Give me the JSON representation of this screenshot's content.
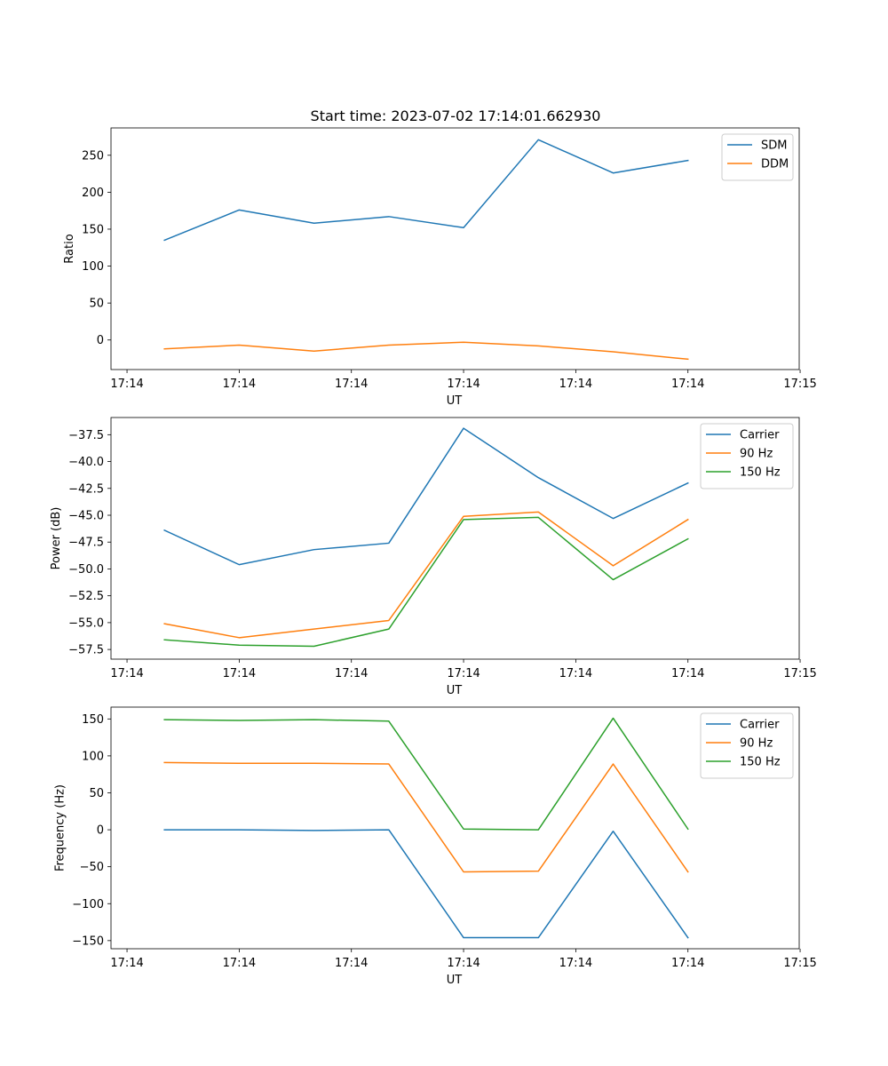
{
  "figure": {
    "title": "Start time: 2023-07-02 17:14:01.662930"
  },
  "chart_data": [
    {
      "type": "line",
      "title": "Start time: 2023-07-02 17:14:01.662930",
      "xlabel": "UT",
      "ylabel": "Ratio",
      "x": [
        1,
        2,
        3,
        4,
        5,
        6,
        7,
        8
      ],
      "xlim": [
        0.2857,
        9.4875
      ],
      "xticks": [
        0.5,
        2.0,
        3.5,
        5.0,
        6.5,
        8.0,
        9.5
      ],
      "xtick_labels": [
        "17:14",
        "17:14",
        "17:14",
        "17:14",
        "17:14",
        "17:14",
        "17:15"
      ],
      "ylim": [
        -40,
        287
      ],
      "yticks": [
        0,
        50,
        100,
        150,
        200,
        250
      ],
      "ytick_labels": [
        "0",
        "50",
        "100",
        "150",
        "200",
        "250"
      ],
      "legend_position": "top-right",
      "series": [
        {
          "name": "SDM",
          "color": "#1f77b4",
          "values": [
            135,
            176,
            158,
            167,
            152,
            271,
            226,
            243
          ]
        },
        {
          "name": "DDM",
          "color": "#ff7f0e",
          "values": [
            -12,
            -7,
            -15,
            -7,
            -3,
            -8,
            -16,
            -26
          ]
        }
      ]
    },
    {
      "type": "line",
      "title": "",
      "xlabel": "UT",
      "ylabel": "Power (dB)",
      "x": [
        1,
        2,
        3,
        4,
        5,
        6,
        7,
        8
      ],
      "xlim": [
        0.2857,
        9.4875
      ],
      "xticks": [
        0.5,
        2.0,
        3.5,
        5.0,
        6.5,
        8.0,
        9.5
      ],
      "xtick_labels": [
        "17:14",
        "17:14",
        "17:14",
        "17:14",
        "17:14",
        "17:14",
        "17:15"
      ],
      "ylim": [
        -58.4,
        -35.9
      ],
      "yticks": [
        -37.5,
        -40.0,
        -42.5,
        -45.0,
        -47.5,
        -50.0,
        -52.5,
        -55.0,
        -57.5
      ],
      "ytick_labels": [
        "−37.5",
        "−40.0",
        "−42.5",
        "−45.0",
        "−47.5",
        "−50.0",
        "−52.5",
        "−55.0",
        "−57.5"
      ],
      "legend_position": "top-right",
      "series": [
        {
          "name": "Carrier",
          "color": "#1f77b4",
          "values": [
            -46.4,
            -49.6,
            -48.2,
            -47.6,
            -36.9,
            -41.5,
            -45.3,
            -42.0
          ]
        },
        {
          "name": "90 Hz",
          "color": "#ff7f0e",
          "values": [
            -55.1,
            -56.4,
            -55.6,
            -54.8,
            -45.1,
            -44.7,
            -49.7,
            -45.4
          ]
        },
        {
          "name": "150 Hz",
          "color": "#2ca02c",
          "values": [
            -56.6,
            -57.1,
            -57.2,
            -55.6,
            -45.4,
            -45.2,
            -51.0,
            -47.2
          ]
        }
      ]
    },
    {
      "type": "line",
      "title": "",
      "xlabel": "UT",
      "ylabel": "Frequency (Hz)",
      "x": [
        1,
        2,
        3,
        4,
        5,
        6,
        7,
        8
      ],
      "xlim": [
        0.2857,
        9.4875
      ],
      "xticks": [
        0.5,
        2.0,
        3.5,
        5.0,
        6.5,
        8.0,
        9.5
      ],
      "xtick_labels": [
        "17:14",
        "17:14",
        "17:14",
        "17:14",
        "17:14",
        "17:14",
        "17:15"
      ],
      "ylim": [
        -161,
        166
      ],
      "yticks": [
        150,
        100,
        50,
        0,
        -50,
        -100,
        -150
      ],
      "ytick_labels": [
        "150",
        "100",
        "50",
        "0",
        "−50",
        "−100",
        "−150"
      ],
      "legend_position": "top-right",
      "series": [
        {
          "name": "Carrier",
          "color": "#1f77b4",
          "values": [
            0,
            0,
            -1,
            0,
            -146,
            -146,
            -2,
            -146
          ]
        },
        {
          "name": "90 Hz",
          "color": "#ff7f0e",
          "values": [
            91,
            90,
            90,
            89,
            -57,
            -56,
            89,
            -57
          ]
        },
        {
          "name": "150 Hz",
          "color": "#2ca02c",
          "values": [
            149,
            148,
            149,
            147,
            1,
            0,
            151,
            1
          ]
        }
      ]
    }
  ]
}
